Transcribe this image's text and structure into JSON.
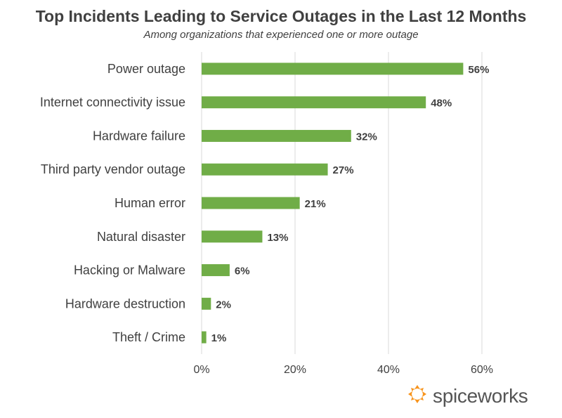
{
  "colors": {
    "bar": "#70ad47",
    "text": "#404040",
    "grid": "#d9d9d9",
    "logo_orange": "#f7941d"
  },
  "logo": {
    "icon": "spiceworks-logo-icon",
    "text": "spiceworks"
  },
  "chart_data": {
    "type": "bar",
    "orientation": "horizontal",
    "title": "Top Incidents Leading to Service Outages in the Last 12 Months",
    "subtitle": "Among organizations that experienced one or more outage",
    "categories": [
      "Power outage",
      "Internet connectivity issue",
      "Hardware failure",
      "Third party vendor outage",
      "Human error",
      "Natural disaster",
      "Hacking or Malware",
      "Hardware destruction",
      "Theft / Crime"
    ],
    "values": [
      56,
      48,
      32,
      27,
      21,
      13,
      6,
      2,
      1
    ],
    "value_labels": [
      "56%",
      "48%",
      "32%",
      "27%",
      "21%",
      "13%",
      "6%",
      "2%",
      "1%"
    ],
    "xlim": [
      0,
      60
    ],
    "xticks": [
      0,
      20,
      40,
      60
    ],
    "xtick_labels": [
      "0%",
      "20%",
      "40%",
      "60%"
    ],
    "xlabel": "",
    "ylabel": "",
    "grid": true,
    "legend": "none"
  }
}
